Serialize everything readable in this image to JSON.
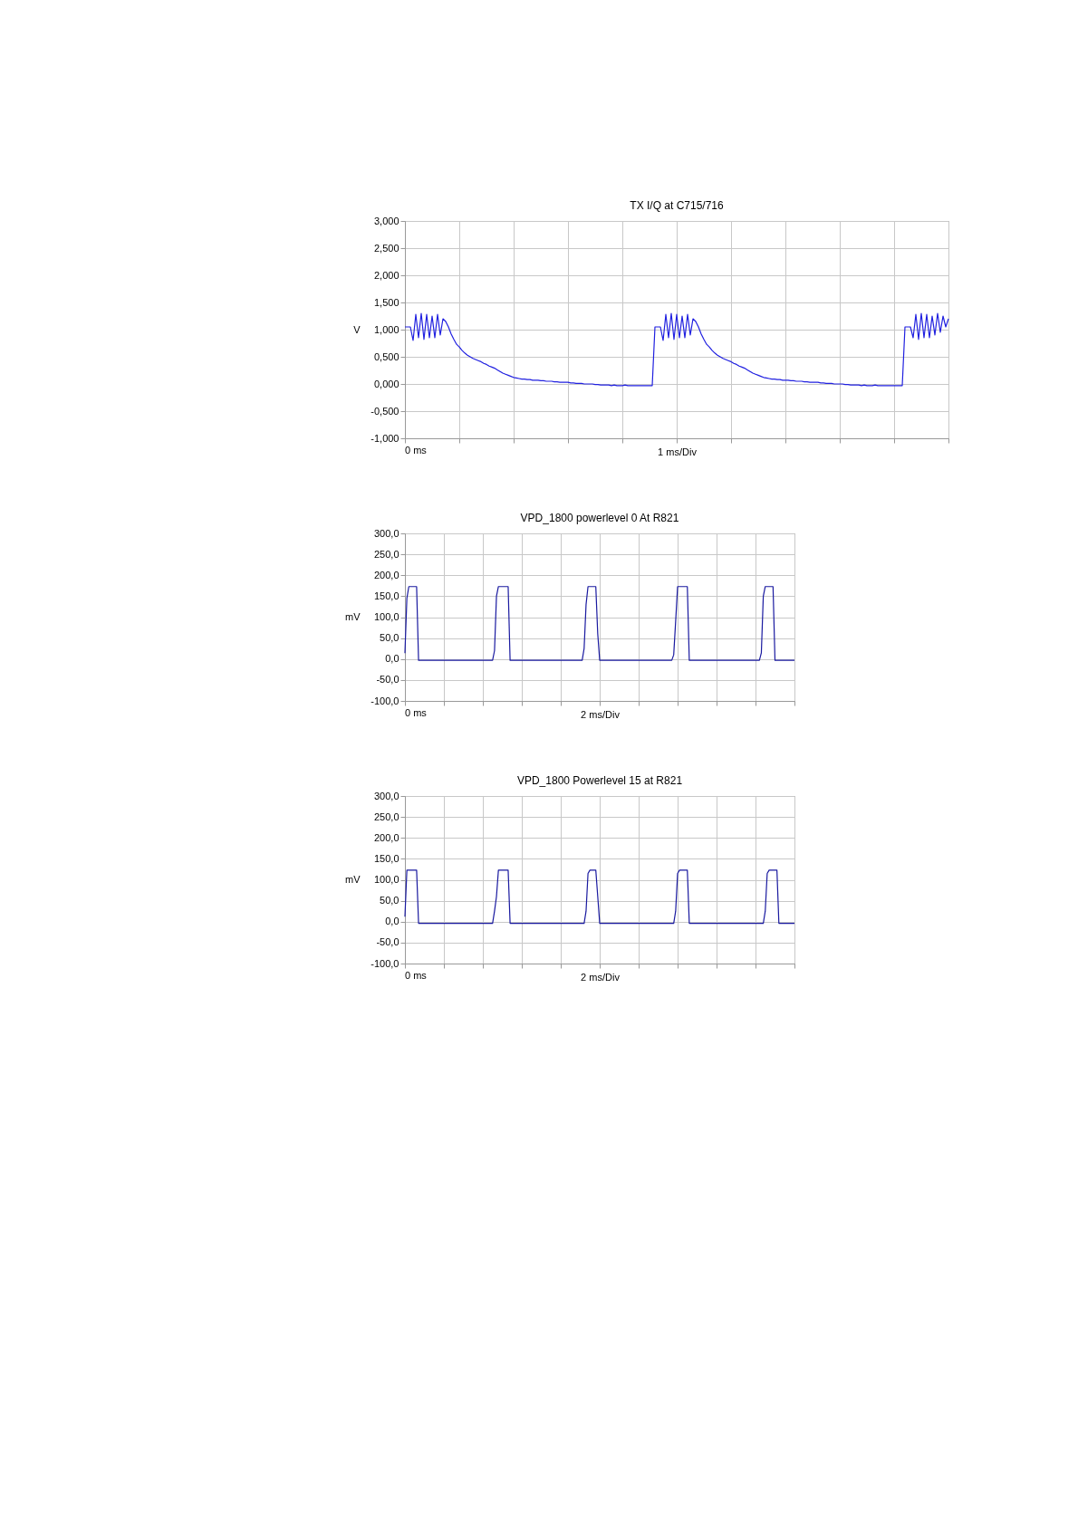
{
  "chart_data": [
    {
      "type": "line",
      "title": "TX I/Q at C715/716",
      "xlabel": "1 ms/Div",
      "ylabel": "V",
      "annotations": [
        "0 ms"
      ],
      "ylim": [
        -1,
        3
      ],
      "yticks": [
        {
          "value": -1,
          "label": "-1,000"
        },
        {
          "value": -0.5,
          "label": "-0,500"
        },
        {
          "value": 0,
          "label": "0,000"
        },
        {
          "value": 0.5,
          "label": "0,500"
        },
        {
          "value": 1,
          "label": "1,000"
        },
        {
          "value": 1.5,
          "label": "1,500"
        },
        {
          "value": 2,
          "label": "2,000"
        },
        {
          "value": 2.5,
          "label": "2,500"
        },
        {
          "value": 3,
          "label": "3,000"
        }
      ],
      "grid": true,
      "categories": [
        null,
        null,
        null,
        null,
        null,
        null,
        null,
        null,
        null,
        null,
        null,
        null,
        null,
        null,
        null,
        null,
        null,
        null,
        null,
        null,
        null,
        null,
        null,
        null,
        null,
        null,
        null,
        null,
        null,
        null,
        null,
        null,
        null,
        null,
        null,
        null,
        null,
        null,
        null,
        null,
        null,
        null,
        null,
        null,
        null,
        null,
        null,
        null,
        null,
        null,
        null,
        null,
        null,
        null,
        null,
        null,
        null,
        null,
        null,
        null,
        null,
        null,
        null,
        null,
        null,
        null,
        null,
        null,
        null,
        null,
        null,
        null,
        null,
        null,
        null,
        null,
        null,
        null,
        null,
        null,
        null,
        null,
        null,
        null,
        null,
        null,
        null,
        null,
        null,
        null,
        null,
        null,
        null,
        null,
        null,
        null,
        null,
        null,
        null,
        null,
        null,
        null,
        null,
        null,
        null,
        null,
        null,
        null,
        null,
        null,
        null,
        null,
        null,
        null,
        null,
        null,
        null,
        null,
        null,
        null,
        null,
        null,
        null,
        null,
        null,
        null,
        null,
        null,
        null,
        null,
        null,
        null,
        null,
        null,
        null,
        null,
        null,
        null,
        null,
        null,
        null,
        null,
        null,
        null,
        null,
        null,
        null,
        null,
        null,
        null,
        null,
        null,
        null,
        null,
        null,
        null,
        null,
        null,
        null,
        null,
        null,
        null,
        null,
        null,
        null,
        null,
        null,
        null,
        null,
        null,
        null,
        null,
        null,
        null,
        null,
        null,
        null,
        null,
        null,
        null,
        null,
        null,
        null,
        null,
        null,
        null,
        null,
        null,
        null,
        null,
        null,
        null,
        null,
        null,
        null,
        null,
        null,
        null,
        null,
        null,
        null
      ],
      "series": [
        {
          "color": "#2020e0",
          "values": [
            1.05,
            1.05,
            1.05,
            0.8,
            1.28,
            0.85,
            1.3,
            0.82,
            1.28,
            0.85,
            1.25,
            0.85,
            1.28,
            0.9,
            1.2,
            1.15,
            1.05,
            0.92,
            0.82,
            0.73,
            0.68,
            0.62,
            0.57,
            0.53,
            0.5,
            0.47,
            0.45,
            0.43,
            0.41,
            0.38,
            0.36,
            0.33,
            0.31,
            0.29,
            0.26,
            0.23,
            0.2,
            0.18,
            0.16,
            0.14,
            0.12,
            0.11,
            0.1,
            0.09,
            0.09,
            0.08,
            0.08,
            0.07,
            0.07,
            0.07,
            0.06,
            0.06,
            0.05,
            0.05,
            0.05,
            0.04,
            0.04,
            0.03,
            0.03,
            0.03,
            0.03,
            0.02,
            0.02,
            0.01,
            0.01,
            0.01,
            0.0,
            0.0,
            0.0,
            0.0,
            -0.01,
            -0.01,
            -0.02,
            -0.02,
            -0.02,
            -0.02,
            -0.03,
            -0.02,
            -0.03,
            -0.03,
            -0.03,
            -0.02,
            -0.03,
            -0.03,
            -0.03,
            -0.03,
            -0.03,
            -0.03,
            -0.03,
            -0.03,
            -0.03,
            -0.03,
            1.05,
            1.05,
            1.05,
            0.8,
            1.28,
            0.85,
            1.3,
            0.82,
            1.28,
            0.85,
            1.25,
            0.85,
            1.28,
            0.9,
            1.2,
            1.15,
            1.05,
            0.92,
            0.82,
            0.73,
            0.68,
            0.62,
            0.57,
            0.53,
            0.5,
            0.47,
            0.45,
            0.43,
            0.41,
            0.38,
            0.36,
            0.33,
            0.31,
            0.29,
            0.26,
            0.23,
            0.2,
            0.18,
            0.16,
            0.14,
            0.12,
            0.11,
            0.1,
            0.09,
            0.09,
            0.08,
            0.08,
            0.07,
            0.07,
            0.07,
            0.06,
            0.06,
            0.05,
            0.05,
            0.05,
            0.04,
            0.04,
            0.03,
            0.03,
            0.03,
            0.03,
            0.02,
            0.02,
            0.01,
            0.01,
            0.01,
            0.0,
            0.0,
            0.0,
            0.0,
            -0.01,
            -0.01,
            -0.02,
            -0.02,
            -0.02,
            -0.02,
            -0.03,
            -0.02,
            -0.03,
            -0.03,
            -0.03,
            -0.02,
            -0.03,
            -0.03,
            -0.03,
            -0.03,
            -0.03,
            -0.03,
            -0.03,
            -0.03,
            -0.03,
            -0.03,
            1.05,
            1.05,
            1.05,
            0.85,
            1.28,
            0.82,
            1.3,
            0.85,
            1.28,
            0.85,
            1.25,
            0.9,
            1.3,
            0.95,
            1.25,
            1.05,
            1.2
          ]
        }
      ]
    },
    {
      "type": "line",
      "title": "VPD_1800 powerlevel 0 At R821",
      "xlabel": "2 ms/Div",
      "ylabel": "mV",
      "annotations": [
        "0 ms"
      ],
      "ylim": [
        -100,
        300
      ],
      "yticks": [
        {
          "value": -100,
          "label": "-100,0"
        },
        {
          "value": -50,
          "label": "-50,0"
        },
        {
          "value": 0,
          "label": "0,0"
        },
        {
          "value": 50,
          "label": "50,0"
        },
        {
          "value": 100,
          "label": "100,0"
        },
        {
          "value": 150,
          "label": "150,0"
        },
        {
          "value": 200,
          "label": "200,0"
        },
        {
          "value": 250,
          "label": "250,0"
        },
        {
          "value": 300,
          "label": "300,0"
        }
      ],
      "grid": true,
      "categories": [
        null,
        null,
        null,
        null,
        null,
        null,
        null,
        null,
        null,
        null,
        null,
        null,
        null,
        null,
        null,
        null,
        null,
        null,
        null,
        null,
        null,
        null,
        null,
        null,
        null,
        null,
        null,
        null,
        null,
        null,
        null,
        null,
        null,
        null,
        null,
        null,
        null,
        null,
        null,
        null,
        null,
        null,
        null,
        null,
        null,
        null,
        null,
        null,
        null,
        null,
        null,
        null,
        null,
        null,
        null,
        null,
        null,
        null,
        null,
        null,
        null,
        null,
        null,
        null,
        null,
        null,
        null,
        null,
        null,
        null,
        null,
        null,
        null,
        null,
        null,
        null,
        null,
        null,
        null,
        null,
        null,
        null,
        null,
        null,
        null,
        null,
        null,
        null,
        null,
        null,
        null,
        null,
        null,
        null,
        null,
        null,
        null,
        null,
        null,
        null,
        null,
        null,
        null,
        null,
        null,
        null,
        null,
        null,
        null,
        null,
        null,
        null,
        null,
        null,
        null,
        null,
        null,
        null,
        null,
        null,
        null,
        null,
        null,
        null,
        null,
        null,
        null,
        null,
        null,
        null,
        null,
        null,
        null,
        null,
        null,
        null,
        null,
        null,
        null,
        null,
        null,
        null,
        null,
        null,
        null,
        null,
        null,
        null,
        null,
        null,
        null,
        null,
        null,
        null,
        null,
        null,
        null,
        null,
        null,
        null,
        null,
        null,
        null,
        null,
        null,
        null,
        null,
        null,
        null,
        null,
        null,
        null,
        null,
        null,
        null,
        null,
        null,
        null,
        null,
        null,
        null,
        null,
        null,
        null,
        null,
        null,
        null,
        null,
        null,
        null,
        null,
        null,
        null,
        null,
        null,
        null,
        null,
        null,
        null,
        null,
        null
      ],
      "series": [
        {
          "color": "#1a1aa0",
          "values": [
            14,
            145,
            173,
            173,
            173,
            173,
            173,
            -3,
            -3,
            -3,
            -3,
            -3,
            -3,
            -3,
            -3,
            -3,
            -3,
            -3,
            -3,
            -3,
            -3,
            -3,
            -3,
            -3,
            -3,
            -3,
            -3,
            -3,
            -3,
            -3,
            -3,
            -3,
            -3,
            -3,
            -3,
            -3,
            -3,
            -3,
            -3,
            -3,
            -3,
            -3,
            -3,
            -3,
            -3,
            -3,
            20,
            150,
            173,
            173,
            173,
            173,
            173,
            173,
            -3,
            -3,
            -3,
            -3,
            -3,
            -3,
            -3,
            -3,
            -3,
            -3,
            -3,
            -3,
            -3,
            -3,
            -3,
            -3,
            -3,
            -3,
            -3,
            -3,
            -3,
            -3,
            -3,
            -3,
            -3,
            -3,
            -3,
            -3,
            -3,
            -3,
            -3,
            -3,
            -3,
            -3,
            -3,
            -3,
            -3,
            -3,
            25,
            130,
            173,
            173,
            173,
            173,
            173,
            60,
            -3,
            -3,
            -3,
            -3,
            -3,
            -3,
            -3,
            -3,
            -3,
            -3,
            -3,
            -3,
            -3,
            -3,
            -3,
            -3,
            -3,
            -3,
            -3,
            -3,
            -3,
            -3,
            -3,
            -3,
            -3,
            -3,
            -3,
            -3,
            -3,
            -3,
            -3,
            -3,
            -3,
            -3,
            -3,
            -3,
            -3,
            -3,
            10,
            90,
            173,
            173,
            173,
            173,
            173,
            173,
            -3,
            -3,
            -3,
            -3,
            -3,
            -3,
            -3,
            -3,
            -3,
            -3,
            -3,
            -3,
            -3,
            -3,
            -3,
            -3,
            -3,
            -3,
            -3,
            -3,
            -3,
            -3,
            -3,
            -3,
            -3,
            -3,
            -3,
            -3,
            -3,
            -3,
            -3,
            -3,
            -3,
            -3,
            -3,
            -3,
            -3,
            15,
            150,
            173,
            173,
            173,
            173,
            173,
            -3,
            -3,
            -3,
            -3,
            -3,
            -3,
            -3,
            -3,
            -3,
            -3,
            -3
          ]
        }
      ]
    },
    {
      "type": "line",
      "title": "VPD_1800 Powerlevel 15 at R821",
      "xlabel": "2 ms/Div",
      "ylabel": "mV",
      "annotations": [
        "0 ms"
      ],
      "ylim": [
        -100,
        300
      ],
      "yticks": [
        {
          "value": -100,
          "label": "-100,0"
        },
        {
          "value": -50,
          "label": "-50,0"
        },
        {
          "value": 0,
          "label": "0,0"
        },
        {
          "value": 50,
          "label": "50,0"
        },
        {
          "value": 100,
          "label": "100,0"
        },
        {
          "value": 150,
          "label": "150,0"
        },
        {
          "value": 200,
          "label": "200,0"
        },
        {
          "value": 250,
          "label": "250,0"
        },
        {
          "value": 300,
          "label": "300,0"
        }
      ],
      "grid": true,
      "categories": [
        null,
        null,
        null,
        null,
        null,
        null,
        null,
        null,
        null,
        null,
        null,
        null,
        null,
        null,
        null,
        null,
        null,
        null,
        null,
        null,
        null,
        null,
        null,
        null,
        null,
        null,
        null,
        null,
        null,
        null,
        null,
        null,
        null,
        null,
        null,
        null,
        null,
        null,
        null,
        null,
        null,
        null,
        null,
        null,
        null,
        null,
        null,
        null,
        null,
        null,
        null,
        null,
        null,
        null,
        null,
        null,
        null,
        null,
        null,
        null,
        null,
        null,
        null,
        null,
        null,
        null,
        null,
        null,
        null,
        null,
        null,
        null,
        null,
        null,
        null,
        null,
        null,
        null,
        null,
        null,
        null,
        null,
        null,
        null,
        null,
        null,
        null,
        null,
        null,
        null,
        null,
        null,
        null,
        null,
        null,
        null,
        null,
        null,
        null,
        null,
        null,
        null,
        null,
        null,
        null,
        null,
        null,
        null,
        null,
        null,
        null,
        null,
        null,
        null,
        null,
        null,
        null,
        null,
        null,
        null,
        null,
        null,
        null,
        null,
        null,
        null,
        null,
        null,
        null,
        null,
        null,
        null,
        null,
        null,
        null,
        null,
        null,
        null,
        null,
        null,
        null,
        null,
        null,
        null,
        null,
        null,
        null,
        null,
        null,
        null,
        null,
        null,
        null,
        null,
        null,
        null,
        null,
        null,
        null,
        null,
        null,
        null,
        null,
        null,
        null,
        null,
        null,
        null,
        null,
        null,
        null,
        null,
        null,
        null,
        null,
        null,
        null,
        null,
        null,
        null,
        null,
        null,
        null,
        null,
        null,
        null,
        null,
        null,
        null,
        null,
        null,
        null,
        null,
        null,
        null,
        null,
        null,
        null,
        null,
        null,
        null
      ],
      "series": [
        {
          "color": "#1a1aa0",
          "values": [
            12,
            123,
            123,
            123,
            123,
            123,
            123,
            -4,
            -4,
            -4,
            -4,
            -4,
            -4,
            -4,
            -4,
            -4,
            -4,
            -4,
            -4,
            -4,
            -4,
            -4,
            -4,
            -4,
            -4,
            -4,
            -4,
            -4,
            -4,
            -4,
            -4,
            -4,
            -4,
            -4,
            -4,
            -4,
            -4,
            -4,
            -4,
            -4,
            -4,
            -4,
            -4,
            -4,
            -4,
            -4,
            25,
            60,
            123,
            123,
            123,
            123,
            123,
            123,
            -4,
            -4,
            -4,
            -4,
            -4,
            -4,
            -4,
            -4,
            -4,
            -4,
            -4,
            -4,
            -4,
            -4,
            -4,
            -4,
            -4,
            -4,
            -4,
            -4,
            -4,
            -4,
            -4,
            -4,
            -4,
            -4,
            -4,
            -4,
            -4,
            -4,
            -4,
            -4,
            -4,
            -4,
            -4,
            -4,
            -4,
            -4,
            -4,
            25,
            115,
            123,
            123,
            123,
            123,
            60,
            -4,
            -4,
            -4,
            -4,
            -4,
            -4,
            -4,
            -4,
            -4,
            -4,
            -4,
            -4,
            -4,
            -4,
            -4,
            -4,
            -4,
            -4,
            -4,
            -4,
            -4,
            -4,
            -4,
            -4,
            -4,
            -4,
            -4,
            -4,
            -4,
            -4,
            -4,
            -4,
            -4,
            -4,
            -4,
            -4,
            -4,
            -4,
            -4,
            25,
            115,
            123,
            123,
            123,
            123,
            123,
            -4,
            -4,
            -4,
            -4,
            -4,
            -4,
            -4,
            -4,
            -4,
            -4,
            -4,
            -4,
            -4,
            -4,
            -4,
            -4,
            -4,
            -4,
            -4,
            -4,
            -4,
            -4,
            -4,
            -4,
            -4,
            -4,
            -4,
            -4,
            -4,
            -4,
            -4,
            -4,
            -4,
            -4,
            -4,
            -4,
            -4,
            -4,
            -4,
            25,
            115,
            123,
            123,
            123,
            123,
            123,
            -4,
            -4,
            -4,
            -4,
            -4,
            -4,
            -4,
            -4,
            -4
          ]
        }
      ]
    }
  ]
}
